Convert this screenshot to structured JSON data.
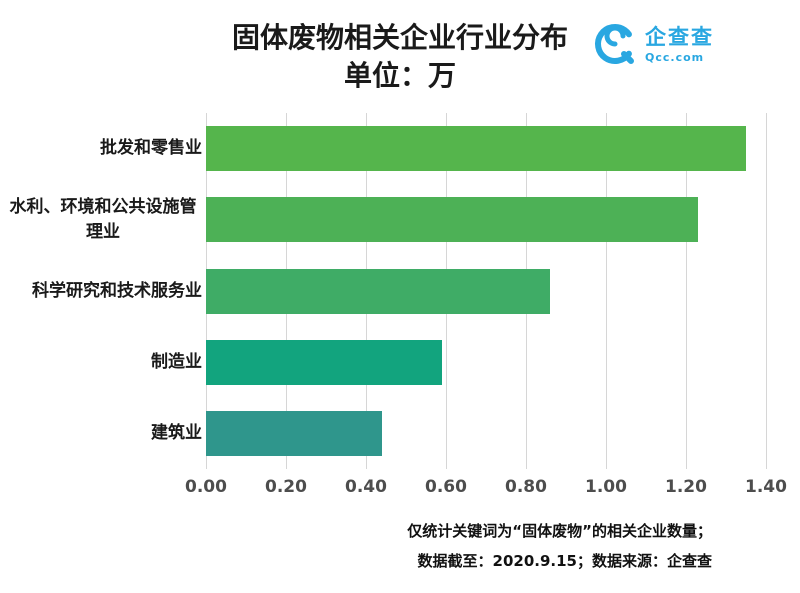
{
  "header": {
    "title": "固体废物相关企业行业分布",
    "subtitle": "单位：万"
  },
  "logo": {
    "name": "企查查",
    "domain": "Qcc.com",
    "color": "#29A7E1"
  },
  "chart_data": {
    "type": "bar",
    "orientation": "horizontal",
    "title": "固体废物相关企业行业分布",
    "unit": "万",
    "categories": [
      "批发和零售业",
      "水利、环境和公共设施管理业",
      "科学研究和技术服务业",
      "制造业",
      "建筑业"
    ],
    "values": [
      1.35,
      1.23,
      0.86,
      0.59,
      0.44
    ],
    "bar_colors": [
      "#55B54C",
      "#4DB156",
      "#3FAC66",
      "#12A47E",
      "#2F968C"
    ],
    "xlim": [
      0,
      1.4
    ],
    "ticks": [
      0,
      0.2,
      0.4,
      0.6,
      0.8,
      1.0,
      1.2,
      1.4
    ],
    "tick_labels": [
      "0.00",
      "0.20",
      "0.40",
      "0.60",
      "0.80",
      "1.00",
      "1.20",
      "1.40"
    ],
    "grid": true,
    "legend": false
  },
  "footer": {
    "note1": "仅统计关键词为“固体废物”的相关企业数量；",
    "note2": "数据截至：2020.9.15；数据来源：企查查"
  }
}
